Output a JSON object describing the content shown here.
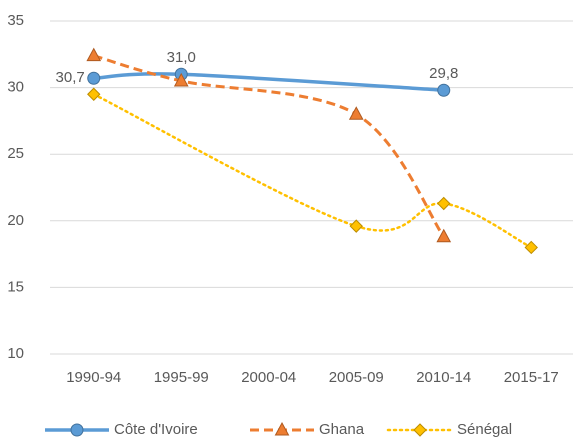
{
  "chart_data": {
    "type": "line",
    "categories": [
      "1990-94",
      "1995-99",
      "2000-04",
      "2005-09",
      "2010-14",
      "2015-17"
    ],
    "series": [
      {
        "name": "Côte d'Ivoire",
        "color": "#5B9BD5",
        "marker": "circle",
        "dash": "solid",
        "values": [
          30.7,
          31.0,
          null,
          null,
          29.8,
          null
        ],
        "value_labels": [
          "30,7",
          "31,0",
          null,
          null,
          "29,8",
          null
        ]
      },
      {
        "name": "Ghana",
        "color": "#ED7D31",
        "marker": "triangle",
        "dash": "dashed",
        "values": [
          32.4,
          30.5,
          null,
          28.0,
          18.8,
          null
        ]
      },
      {
        "name": "Sénégal",
        "color": "#FFC000",
        "marker": "diamond",
        "dash": "dotted",
        "values": [
          29.5,
          null,
          null,
          19.6,
          21.3,
          18.0
        ]
      }
    ],
    "ylim": [
      10,
      35
    ],
    "yticks": [
      10,
      15,
      20,
      25,
      30,
      35
    ],
    "grid": true,
    "span_gaps": true,
    "smooth": true,
    "legend": "bottom"
  }
}
